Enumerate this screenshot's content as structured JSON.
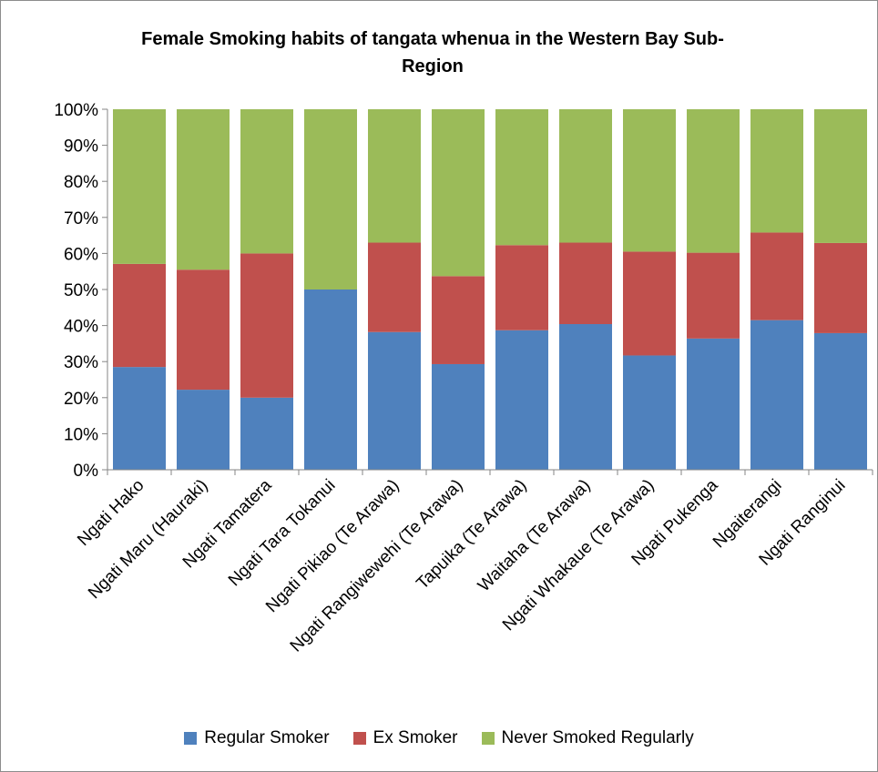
{
  "chart_data": {
    "type": "bar",
    "stacked": true,
    "title": "Female Smoking habits of tangata whenua in the Western Bay Sub-Region",
    "categories": [
      "Ngati Hako",
      "Ngati Maru (Hauraki)",
      "Ngati Tamatera",
      "Ngati Tara Tokanui",
      "Ngati Pikiao (Te Arawa)",
      "Ngati Rangiwewehi (Te Arawa)",
      "Tapuika (Te Arawa)",
      "Waitaha (Te Arawa)",
      "Ngati Whakaue (Te Arawa)",
      "Ngati Pukenga",
      "Ngaiterangi",
      "Ngati Ranginui"
    ],
    "series": [
      {
        "name": "Regular Smoker",
        "color": "#4f81bd",
        "values": [
          28.5,
          22.2,
          20.0,
          50.0,
          38.2,
          29.3,
          38.7,
          40.4,
          31.7,
          36.4,
          41.5,
          37.9
        ]
      },
      {
        "name": "Ex Smoker",
        "color": "#c0504d",
        "values": [
          28.6,
          33.3,
          40.0,
          0.0,
          24.8,
          24.4,
          23.6,
          22.6,
          28.8,
          23.8,
          24.3,
          25.0
        ]
      },
      {
        "name": "Never Smoked Regularly",
        "color": "#9bbb59",
        "values": [
          42.9,
          44.5,
          40.0,
          50.0,
          37.0,
          46.3,
          37.7,
          37.0,
          39.5,
          39.8,
          34.2,
          37.1
        ]
      }
    ],
    "y_ticks": [
      "0%",
      "10%",
      "20%",
      "30%",
      "40%",
      "50%",
      "60%",
      "70%",
      "80%",
      "90%",
      "100%"
    ],
    "ylim": [
      0,
      100
    ],
    "legend_position": "bottom"
  }
}
